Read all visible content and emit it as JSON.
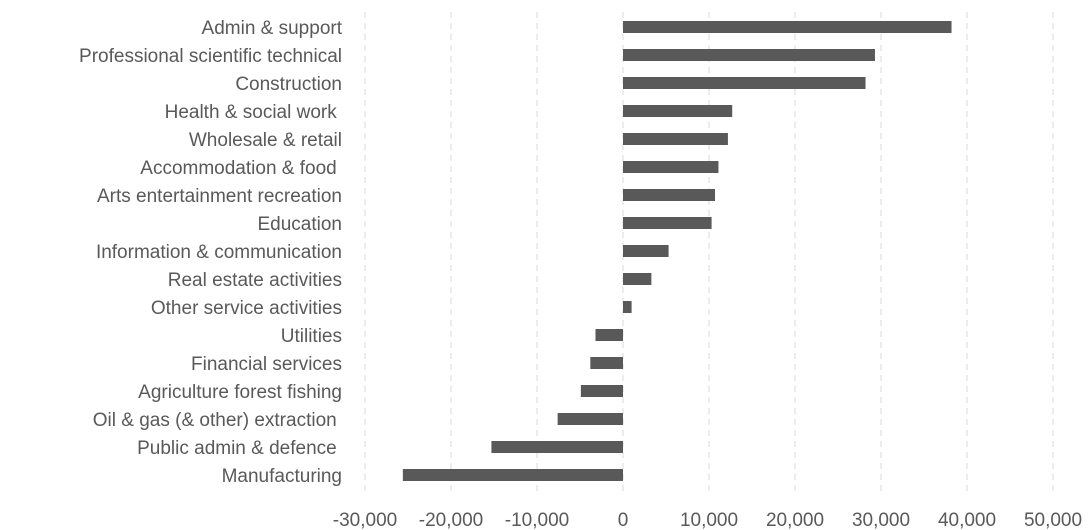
{
  "chart_data": {
    "type": "bar",
    "orientation": "horizontal",
    "title": "",
    "xlabel": "",
    "ylabel": "",
    "grid": true,
    "legend": "none",
    "bar_color": "#595959",
    "xlim": [
      -30000,
      50000
    ],
    "ticks": [
      {
        "value": -30000,
        "label": "-30,000"
      },
      {
        "value": -20000,
        "label": "-20,000"
      },
      {
        "value": -10000,
        "label": "-10,000"
      },
      {
        "value": 0,
        "label": "0"
      },
      {
        "value": 10000,
        "label": "10,000"
      },
      {
        "value": 20000,
        "label": "20,000"
      },
      {
        "value": 30000,
        "label": "30,000"
      },
      {
        "value": 40000,
        "label": "40,000"
      },
      {
        "value": 50000,
        "label": "50,000"
      }
    ],
    "categories": [
      "Admin & support",
      "Professional scientific technical",
      "Construction",
      "Health & social work ",
      "Wholesale & retail",
      "Accommodation & food ",
      "Arts entertainment recreation",
      "Education",
      "Information & communication",
      "Real estate activities",
      "Other service activities",
      "Utilities",
      "Financial services",
      "Agriculture forest fishing",
      "Oil & gas (& other) extraction ",
      "Public admin & defence ",
      "Manufacturing"
    ],
    "values": [
      38200,
      29300,
      28200,
      12700,
      12200,
      11100,
      10700,
      10300,
      5300,
      3300,
      1000,
      -3200,
      -3800,
      -4900,
      -7600,
      -15300,
      -25600
    ]
  }
}
